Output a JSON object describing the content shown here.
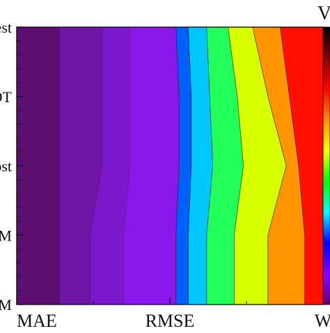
{
  "chart_data": {
    "type": "heatmap",
    "title": "",
    "x_categories": [
      "MAE",
      "RMSE",
      "WA"
    ],
    "y_categories": [
      "Forest",
      "BDT",
      "Boost",
      "GBM",
      "GBM"
    ],
    "x_axis_labels": [
      "MAE",
      "RMSE",
      "WA"
    ],
    "y_axis_labels": [
      "Forest",
      "BDT",
      "Boost",
      "GBM",
      "GBM"
    ],
    "legend_label": "V",
    "grid": false,
    "colorbar": {
      "position": "right",
      "colors": [
        "#000000",
        "#8b0000",
        "#ff0000",
        "#ff8c00",
        "#ffff00",
        "#00ff00",
        "#00ffff",
        "#0000ff",
        "#8a00ff",
        "#6a006a"
      ]
    },
    "contour_levels": [
      {
        "level": 1,
        "positions": [
          0.14,
          0.14,
          0.14,
          0.14,
          0.14
        ]
      },
      {
        "level": 2,
        "positions": [
          0.28,
          0.28,
          0.28,
          0.24,
          0.24
        ]
      },
      {
        "level": 3,
        "positions": [
          0.37,
          0.37,
          0.37,
          0.35,
          0.35
        ]
      },
      {
        "level": 4,
        "positions": [
          0.52,
          0.53,
          0.53,
          0.52,
          0.52
        ]
      },
      {
        "level": 5,
        "positions": [
          0.56,
          0.57,
          0.57,
          0.56,
          0.56
        ]
      },
      {
        "level": 6,
        "positions": [
          0.62,
          0.63,
          0.64,
          0.62,
          0.62
        ]
      },
      {
        "level": 7,
        "positions": [
          0.69,
          0.72,
          0.74,
          0.71,
          0.71
        ]
      },
      {
        "level": 8,
        "positions": [
          0.77,
          0.82,
          0.88,
          0.82,
          0.82
        ]
      },
      {
        "level": 9,
        "positions": [
          0.86,
          0.89,
          0.92,
          0.94,
          0.94
        ]
      }
    ],
    "band_colors": [
      "#5d0f6f",
      "#6f16a6",
      "#7b18cc",
      "#8a18ea",
      "#0060ff",
      "#00c8ff",
      "#22ff5a",
      "#d8ff00",
      "#ff9500",
      "#ff1000",
      "#a60000"
    ]
  }
}
